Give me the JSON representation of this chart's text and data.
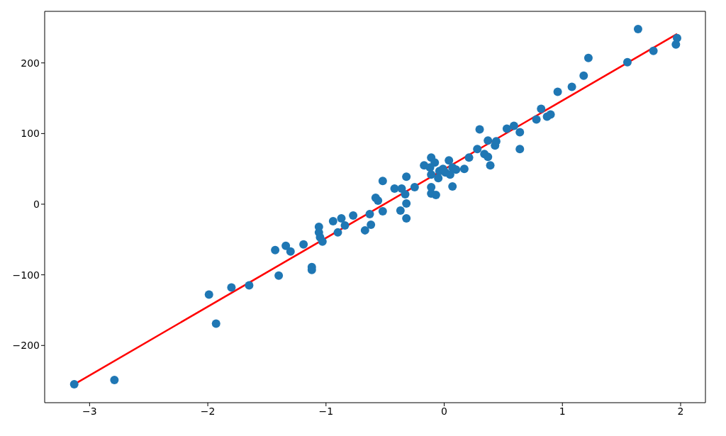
{
  "chart_data": {
    "type": "scatter",
    "xlim": [
      -3.38,
      2.21
    ],
    "ylim": [
      -281,
      273
    ],
    "xticks": [
      {
        "value": -3,
        "label": "−3"
      },
      {
        "value": -2,
        "label": "−2"
      },
      {
        "value": -1,
        "label": "−1"
      },
      0,
      1,
      2
    ],
    "yticks": [
      {
        "value": -200,
        "label": "−200"
      },
      {
        "value": -100,
        "label": "−100"
      },
      0,
      100,
      200
    ],
    "marker": "circle",
    "series": [
      {
        "color": "#1f77b4",
        "x": [
          -3.13,
          -2.79,
          -1.99,
          -1.93,
          -1.8,
          -1.65,
          -1.43,
          -1.4,
          -1.34,
          -1.3,
          -1.19,
          -1.12,
          -1.12,
          -1.06,
          -1.06,
          -1.05,
          -1.03,
          -0.94,
          -0.9,
          -0.87,
          -0.84,
          -0.77,
          -0.67,
          -0.62,
          -0.63,
          -0.58,
          -0.56,
          -0.52,
          -0.52,
          -0.42,
          -0.37,
          -0.36,
          -0.33,
          -0.32,
          -0.32,
          -0.32,
          -0.25,
          -0.17,
          -0.11,
          -0.08,
          -0.12,
          -0.11,
          -0.11,
          -0.11,
          -0.07,
          -0.05,
          0.04,
          0.01,
          0.07,
          0.1,
          0.07,
          0.17,
          0.21,
          0.28,
          0.3,
          0.34,
          0.37,
          0.37,
          0.39,
          0.43,
          0.44,
          0.53,
          0.59,
          0.64,
          0.64,
          0.78,
          0.82,
          0.87,
          0.9,
          0.96,
          1.08,
          1.18,
          1.22,
          1.55,
          1.64,
          1.77,
          1.96,
          1.97,
          -0.04,
          0.05,
          -0.01
        ],
        "values": [
          -255,
          -249,
          -128,
          -169,
          -118,
          -115,
          -65,
          -101,
          -59,
          -67,
          -57,
          -93,
          -89,
          -32,
          -40,
          -47,
          -53,
          -24,
          -40,
          -20,
          -30,
          -16,
          -37,
          -29,
          -14,
          9,
          5,
          -10,
          33,
          22,
          -9,
          22,
          14,
          1,
          -20,
          39,
          24,
          55,
          66,
          59,
          52,
          42,
          15,
          24,
          13,
          37,
          62,
          45,
          52,
          49,
          25,
          50,
          66,
          78,
          106,
          71,
          67,
          90,
          55,
          83,
          89,
          107,
          111,
          102,
          78,
          120,
          135,
          124,
          127,
          159,
          166,
          182,
          207,
          201,
          248,
          217,
          226,
          235,
          47,
          42,
          50
        ]
      },
      {
        "type": "line",
        "color": "#ff0000",
        "line_style": "solid",
        "marker": "none",
        "x": [
          -3.13,
          1.97
        ],
        "values": [
          -255,
          241
        ]
      }
    ]
  }
}
